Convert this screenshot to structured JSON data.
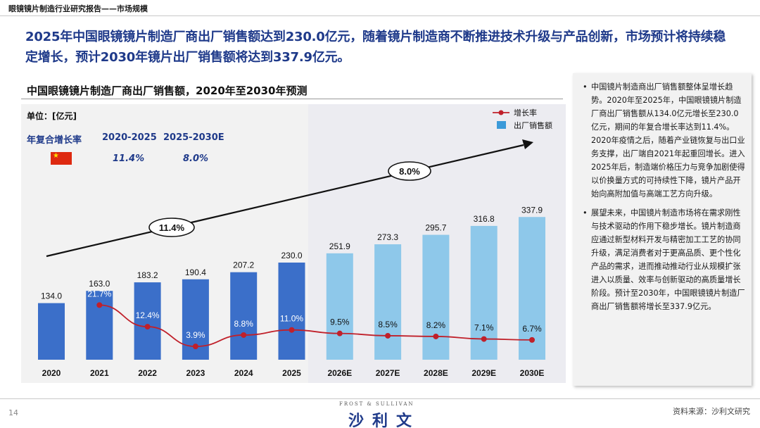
{
  "header": {
    "section_label": "眼镜镜片制造行业研究报告——市场规模"
  },
  "headline": "2025年中国眼镜镜片制造厂商出厂销售额达到230.0亿元，随着镜片制造商不断推进技术升级与产品创新，市场预计将持续稳定增长，预计2030年镜片出厂销售额将达到337.9亿元。",
  "chart_title": "中国眼镜镜片制造厂商出厂销售额，2020年至2030年预测",
  "unit_label": "单位：[亿元]",
  "cagr": {
    "label": "年复合增长率",
    "period1": "2020-2025",
    "period2": "2025-2030E",
    "value1": "11.4%",
    "value2": "8.0%",
    "flag_icon": "china-flag-icon"
  },
  "chart_data": {
    "type": "bar",
    "title": "中国眼镜镜片制造厂商出厂销售额，2020年至2030年预测",
    "xlabel": "",
    "ylabel": "亿元",
    "categories": [
      "2020",
      "2021",
      "2022",
      "2023",
      "2024",
      "2025",
      "2026E",
      "2027E",
      "2028E",
      "2029E",
      "2030E"
    ],
    "series": [
      {
        "name": "出厂销售额",
        "type": "bar",
        "values": [
          134.0,
          163.0,
          183.2,
          190.4,
          207.2,
          230.0,
          251.9,
          273.3,
          295.7,
          316.8,
          337.9
        ],
        "labels": [
          "134.0",
          "163.0",
          "183.2",
          "190.4",
          "207.2",
          "230.0",
          "251.9",
          "273.3",
          "295.7",
          "316.8",
          "337.9"
        ],
        "colors": [
          "#3b6fc9",
          "#3b6fc9",
          "#3b6fc9",
          "#3b6fc9",
          "#3b6fc9",
          "#3b6fc9",
          "#8ec8ea",
          "#8ec8ea",
          "#8ec8ea",
          "#8ec8ea",
          "#8ec8ea"
        ]
      },
      {
        "name": "增长率",
        "type": "line",
        "color": "#c0202a",
        "values": [
          null,
          21.7,
          12.4,
          3.9,
          8.8,
          11.0,
          9.5,
          8.5,
          8.2,
          7.1,
          6.7
        ],
        "labels": [
          "",
          "21.7%",
          "12.4%",
          "3.9%",
          "8.8%",
          "11.0%",
          "9.5%",
          "8.5%",
          "8.2%",
          "7.1%",
          "6.7%"
        ]
      }
    ],
    "ylim": [
      0,
      400
    ],
    "growth_ylim": [
      0,
      40
    ],
    "legend": [
      "增长率",
      "出厂销售额"
    ],
    "legend_position": "top-right",
    "annotations": [
      "11.4%",
      "8.0%"
    ]
  },
  "side_notes": [
    "中国镜片制造商出厂销售额整体呈增长趋势。2020年至2025年，中国眼镜镜片制造厂商出厂销售额从134.0亿元增长至230.0亿元，期间的年复合增长率达到11.4%。2020年疫情之后，随着产业链恢复与出口业务支撑，出厂端自2021年起重回增长。进入2025年后，制造端价格压力与竞争加剧使得以价换量方式的可持续性下降，镜片产品开始向高附加值与高端工艺方向升级。",
    "展望未来，中国镜片制造市场将在需求刚性与技术驱动的作用下稳步增长。镜片制造商应通过新型材料开发与精密加工工艺的协同升级，满足消费者对于更高品质、更个性化产品的需求，进而推动推动行业从规模扩张进入以质量、效率与创新驱动的高质量增长阶段。预计至2030年，中国眼镜镜片制造厂商出厂销售额将增长至337.9亿元。"
  ],
  "footer": {
    "page_number": "14",
    "logo_sub": "FROST & SULLIVAN",
    "logo_main": "沙利文",
    "source": "资料来源：沙利文研究"
  }
}
